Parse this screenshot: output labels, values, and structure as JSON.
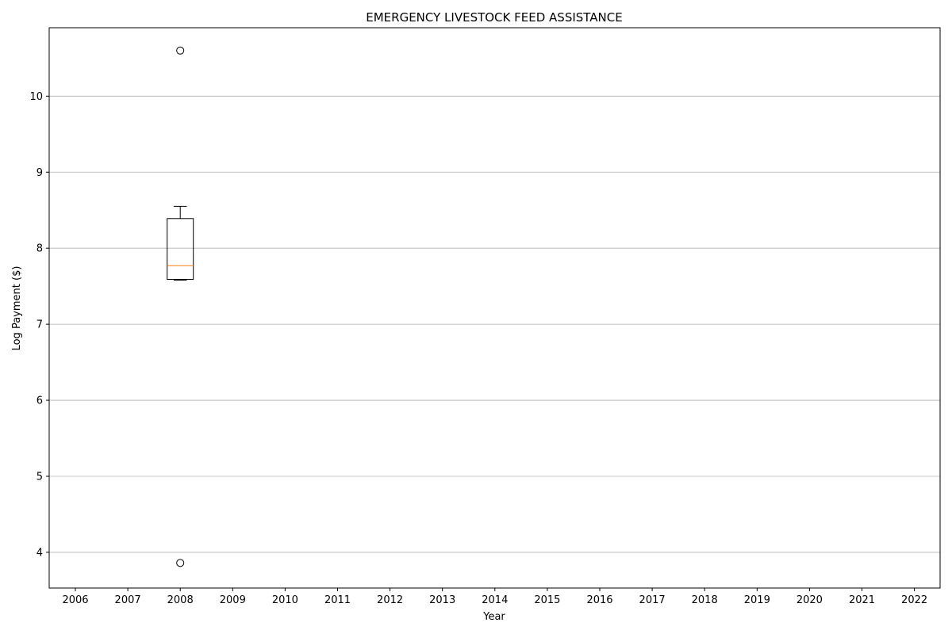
{
  "chart_data": {
    "type": "box",
    "title": "EMERGENCY LIVESTOCK FEED ASSISTANCE",
    "xlabel": "Year",
    "ylabel": "Log Payment ($)",
    "categories": [
      "2006",
      "2007",
      "2008",
      "2009",
      "2010",
      "2011",
      "2012",
      "2013",
      "2014",
      "2015",
      "2016",
      "2017",
      "2018",
      "2019",
      "2020",
      "2021",
      "2022"
    ],
    "y_ticks": [
      4,
      5,
      6,
      7,
      8,
      9,
      10
    ],
    "ylim": [
      3.53,
      10.9
    ],
    "grid": "y-axis only",
    "boxes": [
      {
        "category": "2008",
        "whisker_low": 7.58,
        "q1": 7.59,
        "median": 7.77,
        "q3": 8.39,
        "whisker_high": 8.55,
        "outliers": [
          10.6,
          3.86
        ]
      }
    ],
    "colors": {
      "box": "#000000",
      "median": "#ff7f0e",
      "grid": "#b0b0b0"
    }
  }
}
